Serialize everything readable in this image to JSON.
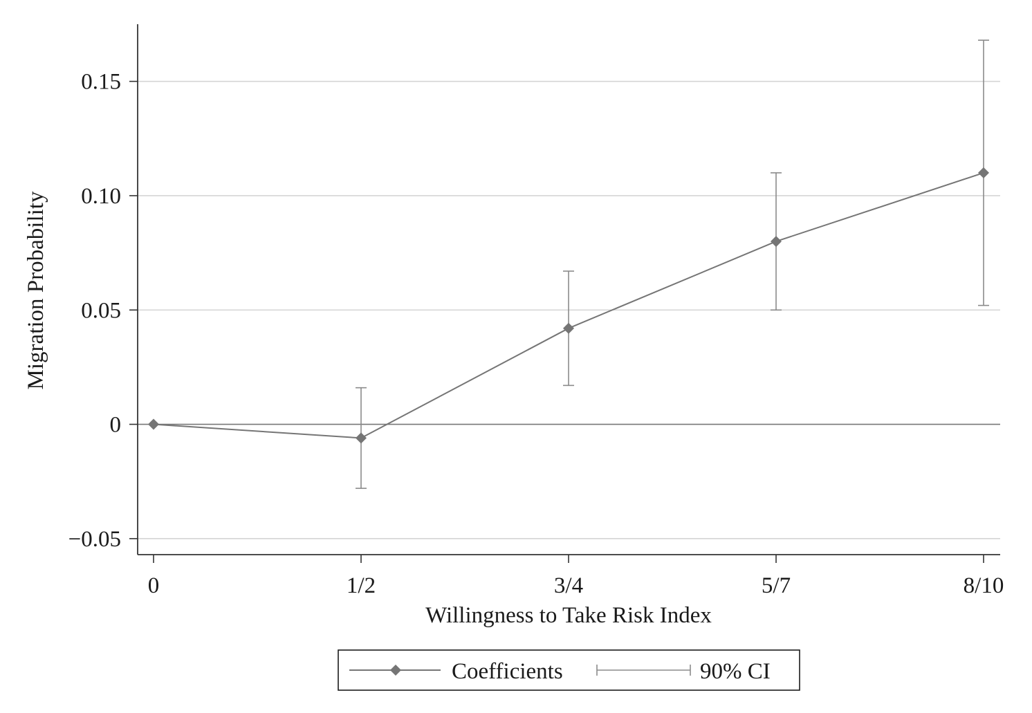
{
  "chart_data": {
    "type": "line",
    "title": "",
    "xlabel": "Willingness to Take Risk Index",
    "ylabel": "Migration Probability",
    "categories": [
      "0",
      "1/2",
      "3/4",
      "5/7",
      "8/10"
    ],
    "series": [
      {
        "name": "Coefficients",
        "values": [
          0,
          -0.006,
          0.042,
          0.08,
          0.11
        ],
        "ci_lower": [
          0,
          -0.028,
          0.017,
          0.05,
          0.052
        ],
        "ci_upper": [
          0,
          0.016,
          0.067,
          0.11,
          0.168
        ],
        "marker": "diamond",
        "color": "#757575"
      }
    ],
    "ci_label": "90% CI",
    "ylim": [
      -0.057,
      0.175
    ],
    "yticks": [
      {
        "value": -0.05,
        "label": "−0.05"
      },
      {
        "value": 0,
        "label": "0"
      },
      {
        "value": 0.05,
        "label": "0.05"
      },
      {
        "value": 0.1,
        "label": "0.10"
      },
      {
        "value": 0.15,
        "label": "0.15"
      }
    ],
    "grid": true,
    "zero_line": true,
    "legend_position": "bottom-center",
    "colors": {
      "line": "#757575",
      "errorbar": "#8a8a8a",
      "grid": "#d4d4d4",
      "axis": "#333333",
      "zero_line": "#777777"
    }
  }
}
